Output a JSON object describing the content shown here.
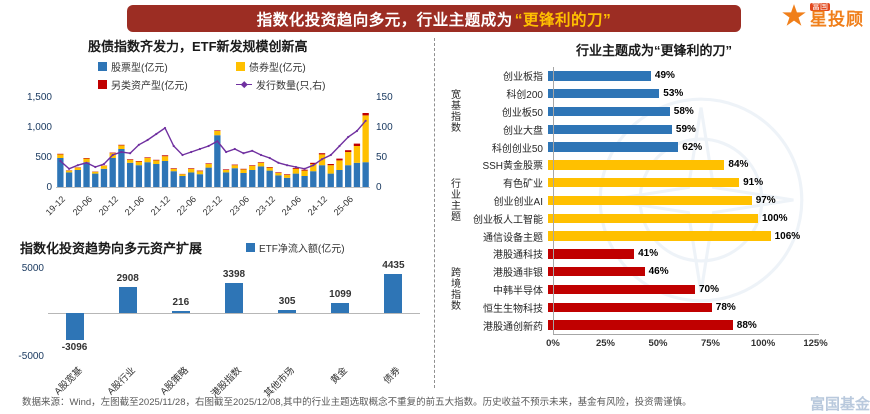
{
  "banner": {
    "title_prefix": "指数化投资趋向多元，行业主题成为",
    "title_highlight": "“更锋利的刀”"
  },
  "logo": {
    "brand": "富国",
    "product": "星投顾"
  },
  "chart_data": [
    {
      "type": "bar",
      "subtype": "stacked-bars-with-line",
      "title": "股债指数齐发力，ETF新发规模创新高",
      "legend": [
        {
          "label": "股票型(亿元)",
          "color": "#2E75B6",
          "marker": "square"
        },
        {
          "label": "债券型(亿元)",
          "color": "#FFC000",
          "marker": "square"
        },
        {
          "label": "另类资产型(亿元)",
          "color": "#C00000",
          "marker": "square"
        },
        {
          "label": "发行数量(只,右)",
          "color": "#7030A0",
          "marker": "line"
        }
      ],
      "x_tick_labels": [
        "19-12",
        "20-06",
        "20-12",
        "21-06",
        "21-12",
        "22-06",
        "22-12",
        "23-06",
        "23-12",
        "24-06",
        "24-12",
        "25-06"
      ],
      "y_left": {
        "max": 1500,
        "ticks_top_down": [
          "1,500",
          "1,000",
          "500",
          "0"
        ]
      },
      "y_right": {
        "max": 150,
        "ticks_top_down": [
          "150",
          "100",
          "50",
          "0"
        ]
      },
      "series": [
        {
          "name": "股票型(亿元)",
          "axis": "left",
          "color": "#2E75B6",
          "values": [
            500,
            260,
            300,
            430,
            240,
            320,
            500,
            650,
            420,
            380,
            430,
            400,
            450,
            280,
            200,
            260,
            230,
            340,
            880,
            260,
            330,
            250,
            300,
            360,
            290,
            210,
            170,
            240,
            200,
            280,
            380,
            240,
            300,
            380,
            420,
            430
          ]
        },
        {
          "name": "债券型(亿元)",
          "axis": "left",
          "color": "#FFC000",
          "values": [
            60,
            30,
            40,
            60,
            30,
            50,
            80,
            60,
            50,
            60,
            70,
            60,
            80,
            40,
            30,
            60,
            50,
            60,
            70,
            40,
            50,
            60,
            70,
            60,
            50,
            40,
            50,
            80,
            90,
            120,
            180,
            140,
            160,
            220,
            280,
            780
          ]
        },
        {
          "name": "另类资产型(亿元)",
          "axis": "left",
          "color": "#C00000",
          "values": [
            10,
            5,
            5,
            10,
            5,
            5,
            10,
            10,
            10,
            10,
            10,
            10,
            15,
            10,
            5,
            10,
            10,
            10,
            10,
            10,
            10,
            10,
            10,
            10,
            10,
            10,
            10,
            15,
            15,
            20,
            20,
            20,
            30,
            30,
            40,
            40
          ]
        },
        {
          "name": "发行数量(只,右)",
          "axis": "right",
          "line": true,
          "color": "#7030A0",
          "values": [
            45,
            32,
            38,
            42,
            35,
            40,
            55,
            60,
            58,
            72,
            80,
            90,
            100,
            70,
            55,
            60,
            65,
            70,
            78,
            60,
            65,
            58,
            62,
            55,
            50,
            42,
            38,
            35,
            32,
            38,
            48,
            55,
            70,
            85,
            95,
            112
          ]
        }
      ]
    },
    {
      "type": "bar",
      "title": "指数化投资趋势向多元资产扩展",
      "legend_label": "ETF净流入额(亿元)",
      "legend_color": "#2E75B6",
      "bar_color": "#2E75B6",
      "categories": [
        "A股宽基",
        "A股行业",
        "A股策略",
        "港股指数",
        "其他市场",
        "黄金",
        "债券"
      ],
      "values": [
        -3096,
        2908,
        216,
        3398,
        305,
        1099,
        4435
      ],
      "ylim": [
        -5000,
        5000
      ],
      "y_ticks": [
        {
          "label": "5000",
          "value": 5000
        },
        {
          "label": "-5000",
          "value": -5000
        }
      ]
    },
    {
      "type": "bar",
      "orientation": "horizontal",
      "title": "行业主题成为“更锋利的刀”",
      "xlim": [
        0,
        125
      ],
      "x_ticks": [
        "0%",
        "25%",
        "50%",
        "75%",
        "100%",
        "125%"
      ],
      "groups": [
        {
          "name": "宽基指数",
          "color": "#2E75B6",
          "items": [
            {
              "label": "创业板指",
              "value": 49
            },
            {
              "label": "科创200",
              "value": 53
            },
            {
              "label": "创业板50",
              "value": 58
            },
            {
              "label": "创业大盘",
              "value": 59
            },
            {
              "label": "科创创业50",
              "value": 62
            }
          ]
        },
        {
          "name": "行业主题",
          "color": "#FFC000",
          "items": [
            {
              "label": "SSH黄金股票",
              "value": 84
            },
            {
              "label": "有色矿业",
              "value": 91
            },
            {
              "label": "创业创业AI",
              "value": 97
            },
            {
              "label": "创业板人工智能",
              "value": 100
            },
            {
              "label": "通信设备主题",
              "value": 106
            }
          ]
        },
        {
          "name": "跨境指数",
          "color": "#C00000",
          "items": [
            {
              "label": "港股通科技",
              "value": 41
            },
            {
              "label": "港股通非银",
              "value": 46
            },
            {
              "label": "中韩半导体",
              "value": 70
            },
            {
              "label": "恒生生物科技",
              "value": 78
            },
            {
              "label": "港股通创新药",
              "value": 88
            }
          ]
        }
      ]
    }
  ],
  "footer": {
    "text": "数据来源：Wind，左图截至2025/11/28，右图截至2025/12/08,其中的行业主题选取概念不重复的前五大指数。历史收益不预示未来，基金有风险，投资需谨慎。"
  },
  "watermark": {
    "text": "富国基金"
  }
}
